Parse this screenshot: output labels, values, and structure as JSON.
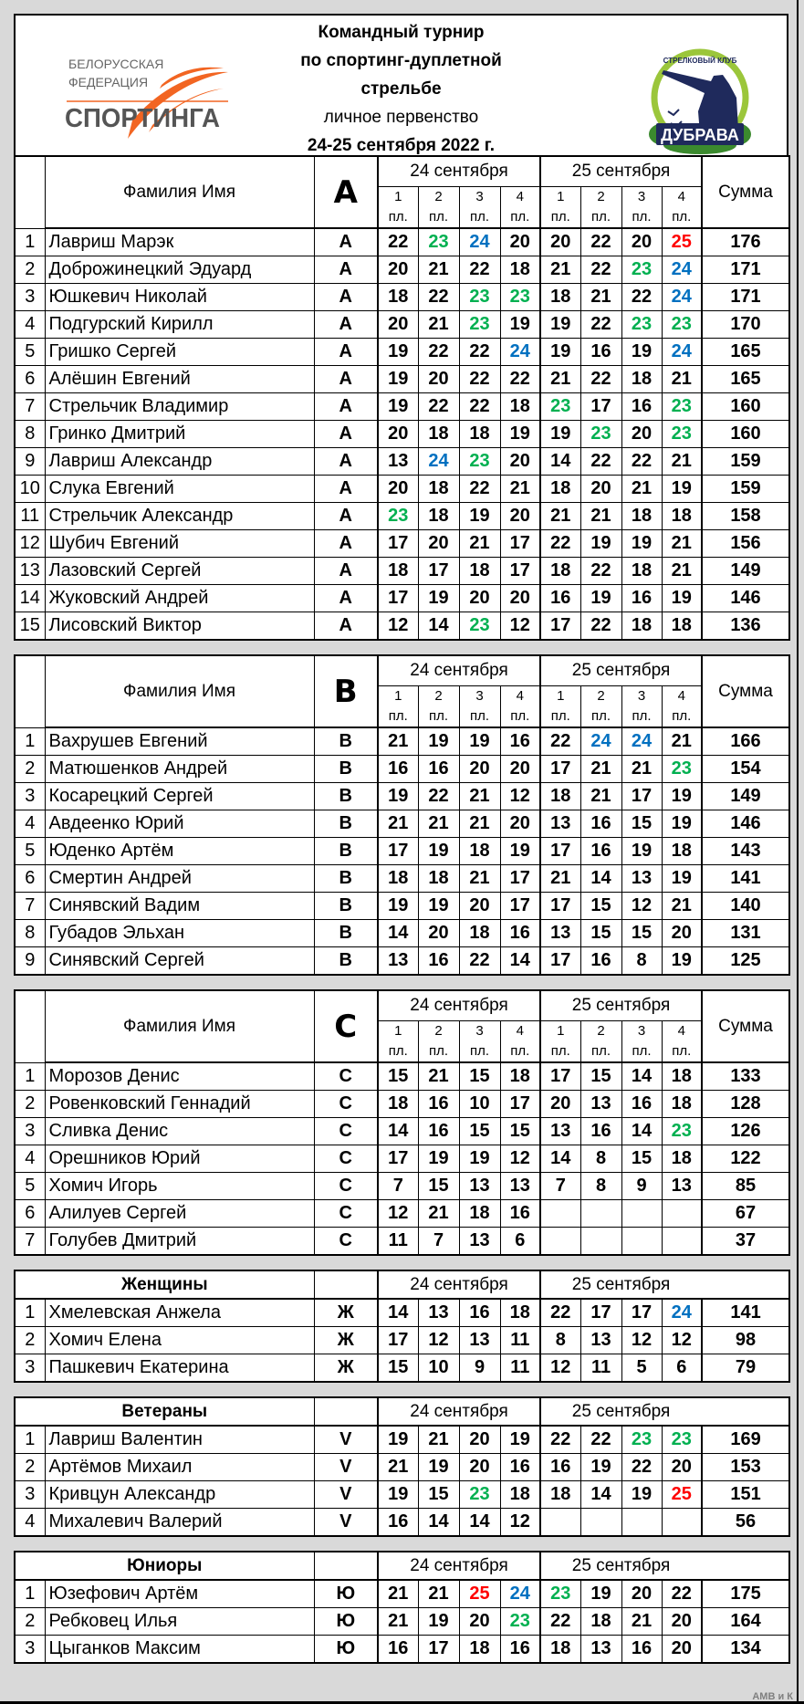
{
  "header": {
    "title_lines": [
      "Командный турнир",
      "по спортинг-дуплетной",
      "стрельбе"
    ],
    "subtitle": "личное первенство",
    "dates": "24-25 сентября 2022 г.",
    "logo_left": {
      "line1": "БЕЛОРУССКАЯ",
      "line2": "ФЕДЕРАЦИЯ",
      "line3": "СПОРТИНГА"
    },
    "logo_right": {
      "arc": "СТРЕЛКОВЫЙ КЛУБ",
      "name": "ДУБРАВА"
    }
  },
  "labels": {
    "name_col": "Фамилия Имя",
    "day1": "24 сентября",
    "day2": "25 сентября",
    "sum": "Сумма",
    "platforms": [
      "1",
      "2",
      "3",
      "4",
      "1",
      "2",
      "3",
      "4"
    ],
    "platform_unit": "пл."
  },
  "highlight_colors": {
    "23": "#00b050",
    "24": "#0070c0",
    "25": "#ff0000"
  },
  "sections": [
    {
      "type": "group",
      "title": "A",
      "rows": [
        {
          "n": "1",
          "name": "Лавриш Марэк",
          "cls": "A",
          "scores": [
            22,
            23,
            24,
            20,
            20,
            22,
            20,
            25
          ],
          "sum": 176
        },
        {
          "n": "2",
          "name": "Доброжинецкий Эдуард",
          "cls": "A",
          "scores": [
            20,
            21,
            22,
            18,
            21,
            22,
            23,
            24
          ],
          "sum": 171
        },
        {
          "n": "3",
          "name": "Юшкевич Николай",
          "cls": "A",
          "scores": [
            18,
            22,
            23,
            23,
            18,
            21,
            22,
            24
          ],
          "sum": 171
        },
        {
          "n": "4",
          "name": "Подгурский Кирилл",
          "cls": "A",
          "scores": [
            20,
            21,
            23,
            19,
            19,
            22,
            23,
            23
          ],
          "sum": 170
        },
        {
          "n": "5",
          "name": "Гришко Сергей",
          "cls": "A",
          "scores": [
            19,
            22,
            22,
            24,
            19,
            16,
            19,
            24
          ],
          "sum": 165
        },
        {
          "n": "6",
          "name": "Алёшин Евгений",
          "cls": "A",
          "scores": [
            19,
            20,
            22,
            22,
            21,
            22,
            18,
            21
          ],
          "sum": 165
        },
        {
          "n": "7",
          "name": "Стрельчик Владимир",
          "cls": "A",
          "scores": [
            19,
            22,
            22,
            18,
            23,
            17,
            16,
            23
          ],
          "sum": 160
        },
        {
          "n": "8",
          "name": "Гринко Дмитрий",
          "cls": "A",
          "scores": [
            20,
            18,
            18,
            19,
            19,
            23,
            20,
            23
          ],
          "sum": 160
        },
        {
          "n": "9",
          "name": "Лавриш Александр",
          "cls": "A",
          "scores": [
            13,
            24,
            23,
            20,
            14,
            22,
            22,
            21
          ],
          "sum": 159
        },
        {
          "n": "10",
          "name": "Слука Евгений",
          "cls": "A",
          "scores": [
            20,
            18,
            22,
            21,
            18,
            20,
            21,
            19
          ],
          "sum": 159
        },
        {
          "n": "11",
          "name": "Стрельчик Александр",
          "cls": "A",
          "scores": [
            23,
            18,
            19,
            20,
            21,
            21,
            18,
            18
          ],
          "sum": 158
        },
        {
          "n": "12",
          "name": "Шубич Евгений",
          "cls": "A",
          "scores": [
            17,
            20,
            21,
            17,
            22,
            19,
            19,
            21
          ],
          "sum": 156
        },
        {
          "n": "13",
          "name": "Лазовский Сергей",
          "cls": "A",
          "scores": [
            18,
            17,
            18,
            17,
            18,
            22,
            18,
            21
          ],
          "sum": 149
        },
        {
          "n": "14",
          "name": "Жуковский Андрей",
          "cls": "A",
          "scores": [
            17,
            19,
            20,
            20,
            16,
            19,
            16,
            19
          ],
          "sum": 146
        },
        {
          "n": "15",
          "name": "Лисовский Виктор",
          "cls": "A",
          "scores": [
            12,
            14,
            23,
            12,
            17,
            22,
            18,
            18
          ],
          "sum": 136
        }
      ]
    },
    {
      "type": "group",
      "title": "B",
      "rows": [
        {
          "n": "1",
          "name": "Вахрушев Евгений",
          "cls": "B",
          "scores": [
            21,
            19,
            19,
            16,
            22,
            24,
            24,
            21
          ],
          "sum": 166
        },
        {
          "n": "2",
          "name": "Матюшенков Андрей",
          "cls": "B",
          "scores": [
            16,
            16,
            20,
            20,
            17,
            21,
            21,
            23
          ],
          "sum": 154
        },
        {
          "n": "3",
          "name": "Косарецкий Сергей",
          "cls": "B",
          "scores": [
            19,
            22,
            21,
            12,
            18,
            21,
            17,
            19
          ],
          "sum": 149
        },
        {
          "n": "4",
          "name": "Авдеенко Юрий",
          "cls": "B",
          "scores": [
            21,
            21,
            21,
            20,
            13,
            16,
            15,
            19
          ],
          "sum": 146
        },
        {
          "n": "5",
          "name": "Юденко Артём",
          "cls": "B",
          "scores": [
            17,
            19,
            18,
            19,
            17,
            16,
            19,
            18
          ],
          "sum": 143
        },
        {
          "n": "6",
          "name": "Смертин Андрей",
          "cls": "B",
          "scores": [
            18,
            18,
            21,
            17,
            21,
            14,
            13,
            19
          ],
          "sum": 141
        },
        {
          "n": "7",
          "name": "Синявский Вадим",
          "cls": "B",
          "scores": [
            19,
            19,
            20,
            17,
            17,
            15,
            12,
            21
          ],
          "sum": 140
        },
        {
          "n": "8",
          "name": "Губадов Эльхан",
          "cls": "B",
          "scores": [
            14,
            20,
            18,
            16,
            13,
            15,
            15,
            20
          ],
          "sum": 131
        },
        {
          "n": "9",
          "name": "Синявский Сергей",
          "cls": "B",
          "scores": [
            13,
            16,
            22,
            14,
            17,
            16,
            8,
            19
          ],
          "sum": 125
        }
      ]
    },
    {
      "type": "group",
      "title": "C",
      "rows": [
        {
          "n": "1",
          "name": "Морозов Денис",
          "cls": "C",
          "scores": [
            15,
            21,
            15,
            18,
            17,
            15,
            14,
            18
          ],
          "sum": 133
        },
        {
          "n": "2",
          "name": "Ровенковский Геннадий",
          "cls": "C",
          "scores": [
            18,
            16,
            10,
            17,
            20,
            13,
            16,
            18
          ],
          "sum": 128
        },
        {
          "n": "3",
          "name": "Сливка Денис",
          "cls": "C",
          "scores": [
            14,
            16,
            15,
            15,
            13,
            16,
            14,
            23
          ],
          "sum": 126
        },
        {
          "n": "4",
          "name": "Орешников Юрий",
          "cls": "C",
          "scores": [
            17,
            19,
            19,
            12,
            14,
            8,
            15,
            18
          ],
          "sum": 122
        },
        {
          "n": "5",
          "name": "Хомич Игорь",
          "cls": "C",
          "scores": [
            7,
            15,
            13,
            13,
            7,
            8,
            9,
            13
          ],
          "sum": 85
        },
        {
          "n": "6",
          "name": "Алилуев Сергей",
          "cls": "C",
          "scores": [
            12,
            21,
            18,
            16,
            null,
            null,
            null,
            null
          ],
          "sum": 67
        },
        {
          "n": "7",
          "name": "Голубев Дмитрий",
          "cls": "C",
          "scores": [
            11,
            7,
            13,
            6,
            null,
            null,
            null,
            null
          ],
          "sum": 37
        }
      ]
    },
    {
      "type": "category",
      "title": "Женщины",
      "rows": [
        {
          "n": "1",
          "name": "Хмелевская Анжела",
          "cls": "Ж",
          "scores": [
            14,
            13,
            16,
            18,
            22,
            17,
            17,
            24
          ],
          "sum": 141
        },
        {
          "n": "2",
          "name": "Хомич Елена",
          "cls": "Ж",
          "scores": [
            17,
            12,
            13,
            11,
            8,
            13,
            12,
            12
          ],
          "sum": 98
        },
        {
          "n": "3",
          "name": "Пашкевич Екатерина",
          "cls": "Ж",
          "scores": [
            15,
            10,
            9,
            11,
            12,
            11,
            5,
            6
          ],
          "sum": 79
        }
      ]
    },
    {
      "type": "category",
      "title": "Ветераны",
      "rows": [
        {
          "n": "1",
          "name": "Лавриш Валентин",
          "cls": "V",
          "scores": [
            19,
            21,
            20,
            19,
            22,
            22,
            23,
            23
          ],
          "sum": 169
        },
        {
          "n": "2",
          "name": "Артёмов Михаил",
          "cls": "V",
          "scores": [
            21,
            19,
            20,
            16,
            16,
            19,
            22,
            20
          ],
          "sum": 153
        },
        {
          "n": "3",
          "name": "Кривцун Александр",
          "cls": "V",
          "scores": [
            19,
            15,
            23,
            18,
            18,
            14,
            19,
            25
          ],
          "sum": 151
        },
        {
          "n": "4",
          "name": "Михалевич Валерий",
          "cls": "V",
          "scores": [
            16,
            14,
            14,
            12,
            null,
            null,
            null,
            null
          ],
          "sum": 56
        }
      ]
    },
    {
      "type": "category",
      "title": "Юниоры",
      "rows": [
        {
          "n": "1",
          "name": "Юзефович Артём",
          "cls": "Ю",
          "scores": [
            21,
            21,
            25,
            24,
            23,
            19,
            20,
            22
          ],
          "sum": 175
        },
        {
          "n": "2",
          "name": "Ребковец Илья",
          "cls": "Ю",
          "scores": [
            21,
            19,
            20,
            23,
            22,
            18,
            21,
            20
          ],
          "sum": 164
        },
        {
          "n": "3",
          "name": "Цыганков Максим",
          "cls": "Ю",
          "scores": [
            16,
            17,
            18,
            16,
            18,
            13,
            16,
            20
          ],
          "sum": 134
        }
      ]
    }
  ],
  "footer": "АМВ и К"
}
